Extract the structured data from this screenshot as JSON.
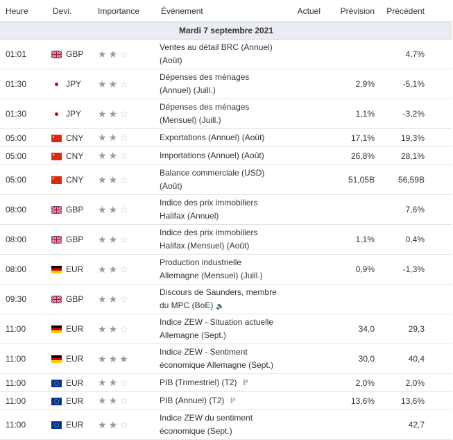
{
  "headers": {
    "time": "Heure",
    "currency": "Devi.",
    "importance": "Importance",
    "event": "Événement",
    "actual": "Actuel",
    "forecast": "Prévision",
    "previous": "Précédent"
  },
  "day_label": "Mardi 7 septembre 2021",
  "rows": [
    {
      "time": "01:01",
      "flag": "gb",
      "currency": "GBP",
      "stars": 2,
      "event_line1": "Ventes au détail BRC (Annuel)",
      "event_line2": "(Août)",
      "actual": "",
      "forecast": "",
      "previous": "4,7%",
      "icon": ""
    },
    {
      "time": "01:30",
      "flag": "jp",
      "currency": "JPY",
      "stars": 2,
      "event_line1": "Dépenses des ménages",
      "event_line2": "(Annuel) (Juill.)",
      "actual": "",
      "forecast": "2,9%",
      "previous": "-5,1%",
      "icon": ""
    },
    {
      "time": "01:30",
      "flag": "jp",
      "currency": "JPY",
      "stars": 2,
      "event_line1": "Dépenses des ménages",
      "event_line2": "(Mensuel) (Juill.)",
      "actual": "",
      "forecast": "1,1%",
      "previous": "-3,2%",
      "icon": ""
    },
    {
      "time": "05:00",
      "flag": "cn",
      "currency": "CNY",
      "stars": 2,
      "event_line1": "Exportations (Annuel) (Août)",
      "event_line2": "",
      "actual": "",
      "forecast": "17,1%",
      "previous": "19,3%",
      "icon": ""
    },
    {
      "time": "05:00",
      "flag": "cn",
      "currency": "CNY",
      "stars": 2,
      "event_line1": "Importations (Annuel) (Août)",
      "event_line2": "",
      "actual": "",
      "forecast": "26,8%",
      "previous": "28,1%",
      "icon": ""
    },
    {
      "time": "05:00",
      "flag": "cn",
      "currency": "CNY",
      "stars": 2,
      "event_line1": "Balance commerciale (USD)",
      "event_line2": "(Août)",
      "actual": "",
      "forecast": "51,05B",
      "previous": "56,59B",
      "icon": ""
    },
    {
      "time": "08:00",
      "flag": "gb",
      "currency": "GBP",
      "stars": 2,
      "event_line1": "Indice des prix immobiliers",
      "event_line2": "Halifax (Annuel)",
      "actual": "",
      "forecast": "",
      "previous": "7,6%",
      "icon": ""
    },
    {
      "time": "08:00",
      "flag": "gb",
      "currency": "GBP",
      "stars": 2,
      "event_line1": "Indice des prix immobiliers",
      "event_line2": "Halifax (Mensuel) (Août)",
      "actual": "",
      "forecast": "1,1%",
      "previous": "0,4%",
      "icon": ""
    },
    {
      "time": "08:00",
      "flag": "de",
      "currency": "EUR",
      "stars": 2,
      "event_line1": "Production industrielle",
      "event_line2": "Allemagne (Mensuel) (Juill.)",
      "actual": "",
      "forecast": "0,9%",
      "previous": "-1,3%",
      "icon": ""
    },
    {
      "time": "09:30",
      "flag": "gb",
      "currency": "GBP",
      "stars": 2,
      "event_line1": "Discours de Saunders, membre",
      "event_line2": "du MPC (BoE)",
      "actual": "",
      "forecast": "",
      "previous": "",
      "icon": "speaker"
    },
    {
      "time": "11:00",
      "flag": "de",
      "currency": "EUR",
      "stars": 2,
      "event_line1": "Indice ZEW - Situation actuelle",
      "event_line2": "Allemagne (Sept.)",
      "actual": "",
      "forecast": "34,0",
      "previous": "29,3",
      "icon": ""
    },
    {
      "time": "11:00",
      "flag": "de",
      "currency": "EUR",
      "stars": 3,
      "event_line1": "Indice ZEW - Sentiment",
      "event_line2": "économique Allemagne (Sept.)",
      "actual": "",
      "forecast": "30,0",
      "previous": "40,4",
      "icon": ""
    },
    {
      "time": "11:00",
      "flag": "eu",
      "currency": "EUR",
      "stars": 2,
      "event_line1": "PIB (Trimestriel) (T2)",
      "event_line2": "",
      "actual": "",
      "forecast": "2,0%",
      "previous": "2,0%",
      "icon": "prelim"
    },
    {
      "time": "11:00",
      "flag": "eu",
      "currency": "EUR",
      "stars": 2,
      "event_line1": "PIB (Annuel) (T2)",
      "event_line2": "",
      "actual": "",
      "forecast": "13,6%",
      "previous": "13,6%",
      "icon": "prelim"
    },
    {
      "time": "11:00",
      "flag": "eu",
      "currency": "EUR",
      "stars": 2,
      "event_line1": "Indice ZEW du sentiment",
      "event_line2": "économique (Sept.)",
      "actual": "",
      "forecast": "",
      "previous": "42,7",
      "icon": ""
    }
  ],
  "icon_labels": {
    "prelim": "P",
    "speaker": "🔈"
  }
}
